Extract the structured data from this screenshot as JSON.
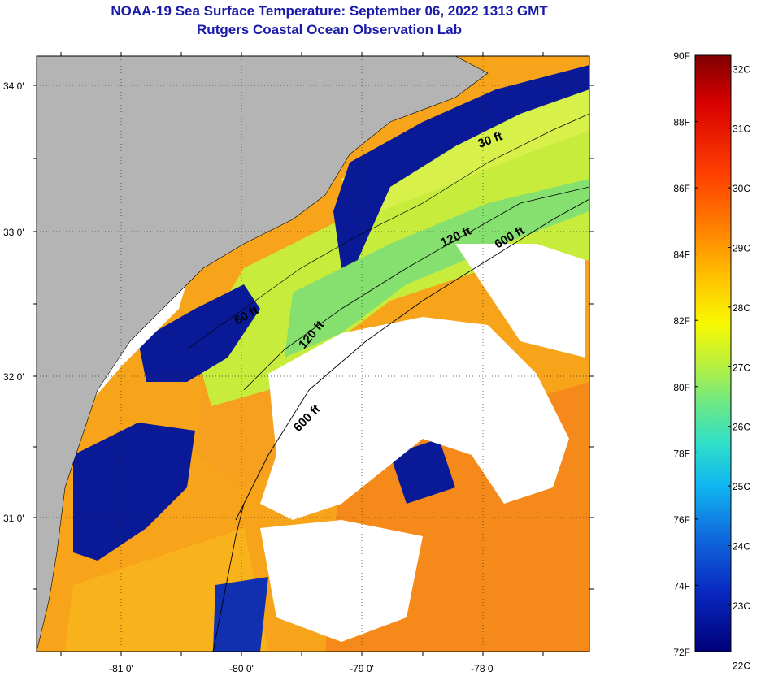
{
  "header": {
    "title": "NOAA-19 Sea Surface Temperature:  September 06, 2022 1313 GMT",
    "subtitle": "Rutgers Coastal Ocean Observation Lab"
  },
  "map": {
    "lat_labels": [
      "34 0'",
      "33 0'",
      "32 0'",
      "31 0'"
    ],
    "lon_labels": [
      "-81 0'",
      "-80 0'",
      "-79 0'",
      "-78 0'"
    ],
    "contour_labels": [
      "30 ft",
      "120 ft",
      "600 ft",
      "60 ft",
      "120 ft",
      "600 ft"
    ],
    "colors": {
      "land": "#b4b4b4",
      "cloud": "#ffffff"
    }
  },
  "colorbar": {
    "fahrenheit": [
      "90F",
      "88F",
      "86F",
      "84F",
      "82F",
      "80F",
      "78F",
      "76F",
      "74F",
      "72F"
    ],
    "celsius": [
      "32C",
      "31C",
      "30C",
      "29C",
      "28C",
      "27C",
      "26C",
      "25C",
      "24C",
      "23C",
      "22C"
    ],
    "range_f": [
      72,
      90
    ],
    "stops": [
      "#7f0000",
      "#d80000",
      "#ff4000",
      "#ff8800",
      "#ffc800",
      "#f8f800",
      "#b8f040",
      "#70e880",
      "#30e0c8",
      "#10b8f0",
      "#1070e0",
      "#0828c0",
      "#00007a"
    ]
  }
}
